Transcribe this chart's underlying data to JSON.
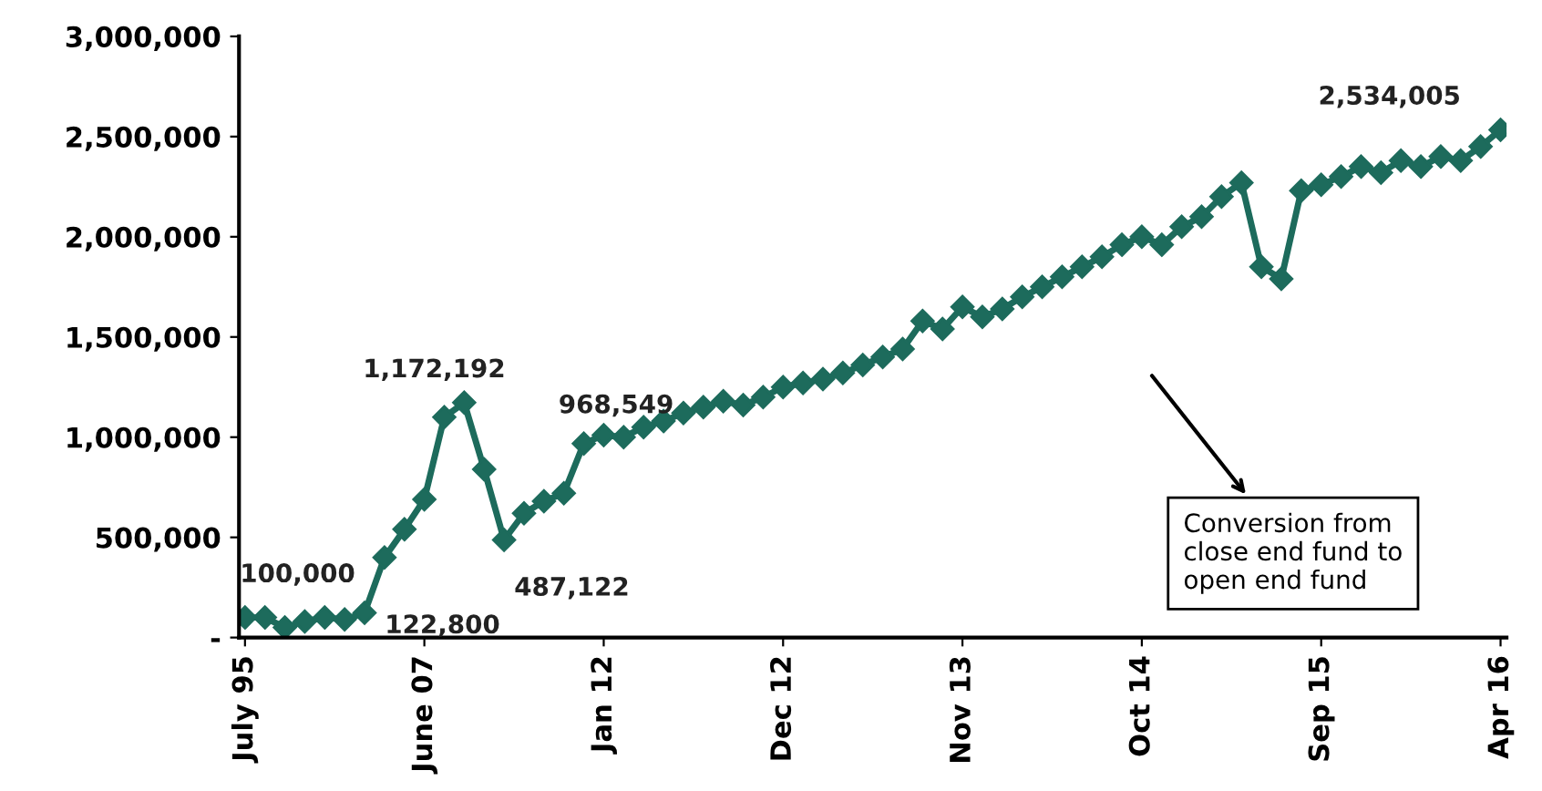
{
  "chart_data": {
    "type": "line",
    "categories": [
      "July 95",
      null,
      null,
      null,
      null,
      null,
      null,
      null,
      null,
      "June 07",
      null,
      null,
      null,
      null,
      null,
      null,
      null,
      null,
      "Jan 12",
      null,
      null,
      null,
      null,
      null,
      null,
      null,
      null,
      "Dec 12",
      null,
      null,
      null,
      null,
      null,
      null,
      null,
      null,
      "Nov 13",
      null,
      null,
      null,
      null,
      null,
      null,
      null,
      null,
      "Oct 14",
      null,
      null,
      null,
      null,
      null,
      null,
      null,
      null,
      "Sep 15",
      null,
      null,
      null,
      null,
      null,
      null,
      null,
      null,
      "Apr 16"
    ],
    "series": [
      {
        "color": "#1d6b5c",
        "values": [
          100000,
          100000,
          50000,
          80000,
          100000,
          90000,
          122800,
          400000,
          540000,
          690000,
          1100000,
          1172192,
          840000,
          487122,
          620000,
          680000,
          720000,
          968549,
          1010000,
          1000000,
          1050000,
          1080000,
          1120000,
          1150000,
          1180000,
          1160000,
          1200000,
          1250000,
          1270000,
          1290000,
          1320000,
          1360000,
          1400000,
          1440000,
          1580000,
          1540000,
          1650000,
          1600000,
          1640000,
          1700000,
          1750000,
          1800000,
          1850000,
          1900000,
          1960000,
          2000000,
          1960000,
          2050000,
          2100000,
          2200000,
          2270000,
          1850000,
          1790000,
          2230000,
          2260000,
          2300000,
          2350000,
          2320000,
          2380000,
          2350000,
          2400000,
          2380000,
          2450000,
          2534005
        ],
        "value_labels": [
          "100,000",
          null,
          null,
          null,
          null,
          null,
          "122,800",
          null,
          null,
          null,
          null,
          "1,172,192",
          null,
          "487,122",
          null,
          null,
          null,
          "968,549",
          null,
          null,
          null,
          null,
          null,
          null,
          null,
          null,
          null,
          null,
          null,
          null,
          null,
          null,
          null,
          null,
          null,
          null,
          null,
          null,
          null,
          null,
          null,
          null,
          null,
          null,
          null,
          null,
          null,
          null,
          null,
          null,
          null,
          null,
          null,
          null,
          null,
          null,
          null,
          null,
          null,
          null,
          null,
          null,
          null,
          "2,534,005"
        ]
      }
    ],
    "ylim": [
      0,
      3000000
    ],
    "yticks": [
      {
        "value": 0,
        "label": "-"
      },
      {
        "value": 500000,
        "label": "500,000"
      },
      {
        "value": 1000000,
        "label": "1,000,000"
      },
      {
        "value": 1500000,
        "label": "1,500,000"
      },
      {
        "value": 2000000,
        "label": "2,000,000"
      },
      {
        "value": 2500000,
        "label": "2,500,000"
      },
      {
        "value": 3000000,
        "label": "3,000,000"
      }
    ],
    "marker": "diamond",
    "line_style": "solid",
    "grid": false,
    "legend": false,
    "annotations": [
      "Conversion from\nclose end fund to\nopen end fund"
    ]
  }
}
